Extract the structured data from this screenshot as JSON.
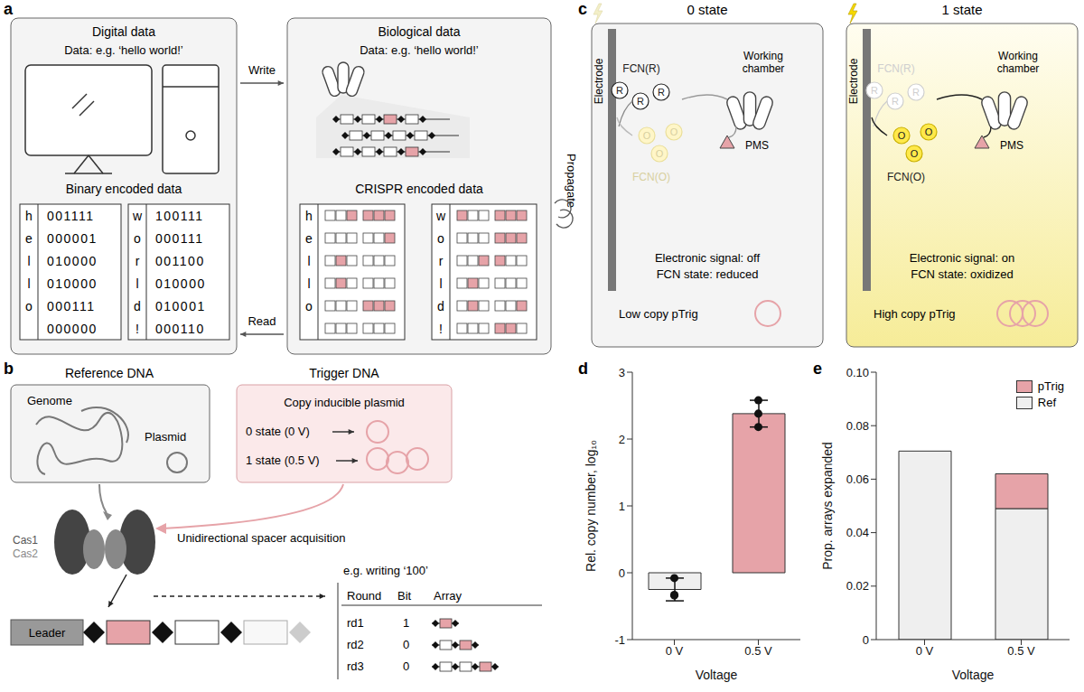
{
  "panels": {
    "a": {
      "label": "a",
      "digital": {
        "title": "Digital data",
        "data": "Data: e.g. ‘hello world!’",
        "encoding_title": "Binary encoded data"
      },
      "biological": {
        "title": "Biological data",
        "data": "Data: e.g. ‘hello world!’",
        "encoding_title": "CRISPR encoded data"
      },
      "arrows": {
        "write": "Write",
        "read": "Read",
        "propagate": "Propagate"
      },
      "tables": [
        {
          "letters": [
            "h",
            "e",
            "l",
            "l",
            "o",
            null
          ],
          "codes": [
            "001111",
            "000001",
            "010000",
            "010000",
            "000111",
            "000000"
          ]
        },
        {
          "letters": [
            "w",
            "o",
            "r",
            "l",
            "d",
            "!"
          ],
          "codes": [
            "100111",
            "000111",
            "001100",
            "010000",
            "010001",
            "000110"
          ]
        }
      ]
    },
    "b": {
      "label": "b",
      "reference": {
        "title": "Reference DNA",
        "genome": "Genome",
        "plasmid": "Plasmid"
      },
      "trigger": {
        "title": "Trigger DNA",
        "subtitle": "Copy inducible plasmid",
        "states": [
          "0 state (0 V)",
          "1 state (0.5 V)"
        ]
      },
      "cas": [
        "Cas1",
        "Cas2"
      ],
      "acquisition": "Unidirectional spacer acquisition",
      "leader": "Leader",
      "example": {
        "title": "e.g. writing ‘100’",
        "headers": [
          "Round",
          "Bit",
          "Array"
        ],
        "rows": [
          [
            "rd1",
            "1"
          ],
          [
            "rd2",
            "0"
          ],
          [
            "rd3",
            "0"
          ]
        ]
      }
    },
    "c": {
      "label": "c",
      "states": [
        {
          "title": "0 state",
          "electrode": "Electrode",
          "chamber": "Working chamber",
          "reduced": "FCN(R)",
          "oxidized": "FCN(O)",
          "mediator": "PMS",
          "circle_r": "R",
          "circle_o": "O",
          "signal": "Electronic signal: off",
          "fcn": "FCN state: reduced",
          "plasmid": "Low copy pTrig"
        },
        {
          "title": "1 state",
          "electrode": "Electrode",
          "chamber": "Working chamber",
          "reduced": "FCN(R)",
          "oxidized": "FCN(O)",
          "mediator": "PMS",
          "circle_r": "R",
          "circle_o": "O",
          "signal": "Electronic signal: on",
          "fcn": "FCN state: oxidized",
          "plasmid": "High copy pTrig"
        }
      ]
    }
  },
  "chart_data": [
    {
      "title": "d",
      "type": "bar",
      "categories": [
        "0 V",
        "0.5 V"
      ],
      "values": [
        -0.25,
        2.38
      ],
      "errors": [
        0.17,
        0.2
      ],
      "points": [
        [
          -0.08,
          -0.33,
          -0.34
        ],
        [
          2.58,
          2.38,
          2.18
        ]
      ],
      "colors": [
        "#efefef",
        "#e6a3a8"
      ],
      "x_label": "Voltage",
      "y_label": "Rel. copy number, log₁₀",
      "ylim": [
        -1,
        3
      ],
      "yticks": [
        -1,
        0,
        1,
        2,
        3
      ]
    },
    {
      "title": "e",
      "type": "bar",
      "stacked": true,
      "categories": [
        "0 V",
        "0.5 V"
      ],
      "series": [
        {
          "name": "Ref",
          "color": "#efefef",
          "values": [
            0.0705,
            0.049
          ]
        },
        {
          "name": "pTrig",
          "color": "#e6a3a8",
          "values": [
            0,
            0.013
          ]
        }
      ],
      "x_label": "Voltage",
      "y_label": "Prop. arrays expanded",
      "ylim": [
        0,
        0.1
      ],
      "yticks": [
        0,
        0.02,
        0.04,
        0.06,
        0.08,
        {
          "value": 0.1,
          "label": "0.10"
        }
      ],
      "legend": "top-right"
    }
  ]
}
